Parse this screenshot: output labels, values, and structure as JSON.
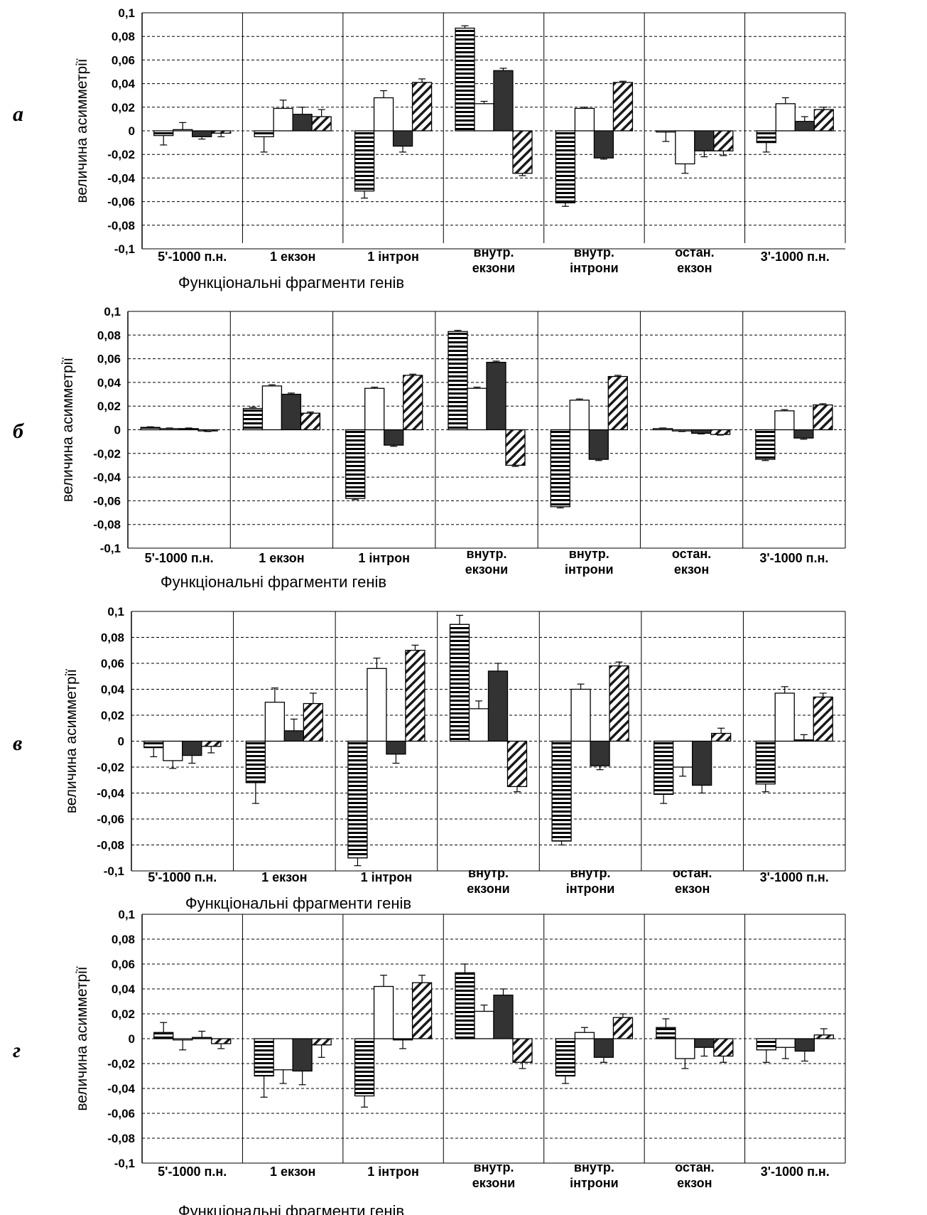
{
  "ylabel": "величина асимметрії",
  "xlabel": "Функціональні фрагменти генів",
  "y_ticks": [
    "0,1",
    "0,08",
    "0,06",
    "0,04",
    "0,02",
    "0",
    "-0,02",
    "-0,04",
    "-0,06",
    "-0,08",
    "-0,1"
  ],
  "categories": [
    [
      "5'-1000 п.н."
    ],
    [
      "1 екзон"
    ],
    [
      "1 інтрон"
    ],
    [
      "внутр.",
      "екзони"
    ],
    [
      "внутр.",
      "інтрони"
    ],
    [
      "остан.",
      "екзон"
    ],
    [
      "3'-1000 п.н."
    ]
  ],
  "patterns": [
    "horizontal-stripes",
    "white",
    "black",
    "diagonal-hatch"
  ],
  "chart_data": [
    {
      "type": "bar",
      "panel_label": "а",
      "ylim": [
        -0.1,
        0.1
      ],
      "grid": true,
      "values": [
        [
          -0.004,
          0.001,
          -0.005,
          -0.002
        ],
        [
          -0.005,
          0.019,
          0.014,
          0.012
        ],
        [
          -0.051,
          0.028,
          -0.013,
          0.041
        ],
        [
          0.087,
          0.023,
          0.051,
          -0.036
        ],
        [
          -0.061,
          0.019,
          -0.023,
          0.041
        ],
        [
          -0.001,
          -0.028,
          -0.017,
          -0.017
        ],
        [
          -0.01,
          0.023,
          0.008,
          0.018
        ]
      ],
      "errors": [
        [
          0.008,
          0.006,
          0.002,
          0.003
        ],
        [
          0.013,
          0.007,
          0.006,
          0.006
        ],
        [
          0.006,
          0.006,
          0.005,
          0.003
        ],
        [
          0.002,
          0.002,
          0.002,
          0.002
        ],
        [
          0.003,
          0.001,
          0.001,
          0.001
        ],
        [
          0.008,
          0.008,
          0.005,
          0.004
        ],
        [
          0.008,
          0.005,
          0.004,
          0.002
        ]
      ]
    },
    {
      "type": "bar",
      "panel_label": "б",
      "ylim": [
        -0.1,
        0.1
      ],
      "grid": true,
      "values": [
        [
          0.002,
          0.001,
          0.001,
          -0.001
        ],
        [
          0.018,
          0.037,
          0.03,
          0.014
        ],
        [
          -0.058,
          0.035,
          -0.013,
          0.046
        ],
        [
          0.083,
          0.035,
          0.057,
          -0.03
        ],
        [
          -0.065,
          0.025,
          -0.025,
          0.045
        ],
        [
          0.001,
          -0.001,
          -0.003,
          -0.004
        ],
        [
          -0.025,
          0.016,
          -0.007,
          0.021
        ]
      ],
      "errors": [
        [
          0.0005,
          0.0005,
          0.0005,
          0.0005
        ],
        [
          0.001,
          0.001,
          0.001,
          0.001
        ],
        [
          0.001,
          0.001,
          0.001,
          0.001
        ],
        [
          0.001,
          0.001,
          0.001,
          0.001
        ],
        [
          0.001,
          0.001,
          0.001,
          0.001
        ],
        [
          0.0005,
          0.0005,
          0.0005,
          0.0005
        ],
        [
          0.001,
          0.001,
          0.001,
          0.001
        ]
      ]
    },
    {
      "type": "bar",
      "panel_label": "в",
      "ylim": [
        -0.1,
        0.1
      ],
      "grid": true,
      "values": [
        [
          -0.005,
          -0.015,
          -0.011,
          -0.004
        ],
        [
          -0.032,
          0.03,
          0.008,
          0.029
        ],
        [
          -0.09,
          0.056,
          -0.01,
          0.07
        ],
        [
          0.09,
          0.025,
          0.054,
          -0.035
        ],
        [
          -0.077,
          0.04,
          -0.019,
          0.058
        ],
        [
          -0.041,
          -0.02,
          -0.034,
          0.006
        ],
        [
          -0.033,
          0.037,
          0.001,
          0.034
        ]
      ],
      "errors": [
        [
          0.007,
          0.006,
          0.006,
          0.005
        ],
        [
          0.016,
          0.011,
          0.009,
          0.008
        ],
        [
          0.006,
          0.008,
          0.007,
          0.004
        ],
        [
          0.007,
          0.006,
          0.006,
          0.004
        ],
        [
          0.003,
          0.004,
          0.003,
          0.003
        ],
        [
          0.007,
          0.007,
          0.006,
          0.004
        ],
        [
          0.006,
          0.005,
          0.004,
          0.003
        ]
      ]
    },
    {
      "type": "bar",
      "panel_label": "г",
      "ylim": [
        -0.1,
        0.1
      ],
      "grid": true,
      "values": [
        [
          0.005,
          -0.001,
          0.001,
          -0.004
        ],
        [
          -0.03,
          -0.025,
          -0.026,
          -0.005
        ],
        [
          -0.046,
          0.042,
          -0.001,
          0.045
        ],
        [
          0.053,
          0.022,
          0.035,
          -0.019
        ],
        [
          -0.03,
          0.005,
          -0.015,
          0.017
        ],
        [
          0.009,
          -0.016,
          -0.007,
          -0.014
        ],
        [
          -0.009,
          -0.007,
          -0.01,
          0.003
        ]
      ],
      "errors": [
        [
          0.008,
          0.008,
          0.005,
          0.004
        ],
        [
          0.017,
          0.011,
          0.011,
          0.01
        ],
        [
          0.009,
          0.009,
          0.007,
          0.006
        ],
        [
          0.007,
          0.005,
          0.005,
          0.005
        ],
        [
          0.006,
          0.004,
          0.004,
          0.003
        ],
        [
          0.007,
          0.008,
          0.007,
          0.005
        ],
        [
          0.01,
          0.009,
          0.008,
          0.005
        ]
      ]
    }
  ]
}
